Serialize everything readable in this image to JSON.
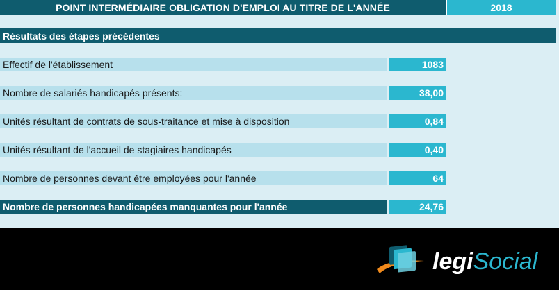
{
  "header": {
    "title": "POINT INTERMÉDIAIRE OBLIGATION D'EMPLOI AU TITRE DE L'ANNÉE",
    "year": "2018"
  },
  "section": {
    "title": "Résultats des étapes précédentes"
  },
  "rows": [
    {
      "label": "Effectif de l'établissement",
      "value": "1083"
    },
    {
      "label": "Nombre de salariés handicapés présents:",
      "value": "38,00"
    },
    {
      "label": "Unités résultant de contrats de sous-traitance et mise à disposition",
      "value": "0,84"
    },
    {
      "label": "Unités résultant de l'accueil de stagiaires handicapés",
      "value": "0,40"
    },
    {
      "label": "Nombre de personnes devant être employées pour l'année",
      "value": "64"
    }
  ],
  "total": {
    "label": "Nombre de personnes handicapées manquantes pour l'année",
    "value": "24,76"
  },
  "logo": {
    "prefix": "legi",
    "suffix": "Social"
  },
  "colors": {
    "dark_teal": "#0f5c6e",
    "cyan": "#2bb7cf",
    "light_row": "#b7e0ec",
    "sheet_bg": "#dbeef4",
    "logo_orange": "#f08a1c"
  }
}
